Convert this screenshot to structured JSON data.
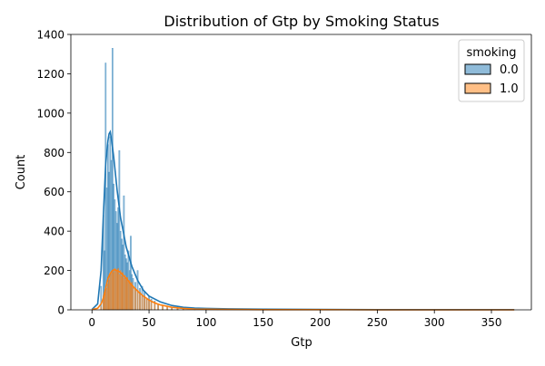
{
  "chart_data": {
    "type": "histogram",
    "title": "Distribution of Gtp by Smoking Status",
    "xlabel": "Gtp",
    "ylabel": "Count",
    "xlim": [
      -18.5,
      385
    ],
    "ylim": [
      0,
      1400
    ],
    "xticks": [
      0,
      50,
      100,
      150,
      200,
      250,
      300,
      350
    ],
    "yticks": [
      0,
      200,
      400,
      600,
      800,
      1000,
      1200,
      1400
    ],
    "grid": false,
    "legend": {
      "title": "smoking",
      "placement": "top-right"
    },
    "series": [
      {
        "name": "0.0",
        "color": "#1f77b4",
        "bins": [
          {
            "x": 8,
            "count": 120
          },
          {
            "x": 10,
            "count": 480
          },
          {
            "x": 11,
            "count": 300
          },
          {
            "x": 12,
            "count": 1255
          },
          {
            "x": 13,
            "count": 620
          },
          {
            "x": 14,
            "count": 840
          },
          {
            "x": 15,
            "count": 700
          },
          {
            "x": 16,
            "count": 880
          },
          {
            "x": 17,
            "count": 760
          },
          {
            "x": 18,
            "count": 1330
          },
          {
            "x": 19,
            "count": 640
          },
          {
            "x": 20,
            "count": 560
          },
          {
            "x": 21,
            "count": 500
          },
          {
            "x": 22,
            "count": 440
          },
          {
            "x": 23,
            "count": 520
          },
          {
            "x": 24,
            "count": 810
          },
          {
            "x": 25,
            "count": 400
          },
          {
            "x": 26,
            "count": 360
          },
          {
            "x": 27,
            "count": 330
          },
          {
            "x": 28,
            "count": 580
          },
          {
            "x": 29,
            "count": 280
          },
          {
            "x": 30,
            "count": 260
          },
          {
            "x": 31,
            "count": 240
          },
          {
            "x": 32,
            "count": 300
          },
          {
            "x": 33,
            "count": 200
          },
          {
            "x": 34,
            "count": 375
          },
          {
            "x": 35,
            "count": 180
          },
          {
            "x": 36,
            "count": 160
          },
          {
            "x": 38,
            "count": 140
          },
          {
            "x": 40,
            "count": 200
          },
          {
            "x": 42,
            "count": 110
          },
          {
            "x": 44,
            "count": 120
          },
          {
            "x": 46,
            "count": 90
          },
          {
            "x": 48,
            "count": 60
          },
          {
            "x": 50,
            "count": 70
          },
          {
            "x": 52,
            "count": 55
          },
          {
            "x": 55,
            "count": 45
          },
          {
            "x": 58,
            "count": 30
          },
          {
            "x": 62,
            "count": 25
          },
          {
            "x": 66,
            "count": 15
          },
          {
            "x": 70,
            "count": 12
          },
          {
            "x": 75,
            "count": 8
          },
          {
            "x": 80,
            "count": 5
          },
          {
            "x": 90,
            "count": 8
          },
          {
            "x": 100,
            "count": 3
          },
          {
            "x": 110,
            "count": 2
          }
        ],
        "kde": [
          [
            0,
            2
          ],
          [
            5,
            30
          ],
          [
            8,
            200
          ],
          [
            10,
            480
          ],
          [
            12,
            740
          ],
          [
            14,
            860
          ],
          [
            15,
            895
          ],
          [
            16,
            905
          ],
          [
            17,
            870
          ],
          [
            19,
            780
          ],
          [
            22,
            610
          ],
          [
            25,
            470
          ],
          [
            30,
            320
          ],
          [
            35,
            220
          ],
          [
            40,
            150
          ],
          [
            45,
            100
          ],
          [
            50,
            70
          ],
          [
            60,
            40
          ],
          [
            70,
            22
          ],
          [
            80,
            13
          ],
          [
            90,
            9
          ],
          [
            100,
            7
          ],
          [
            120,
            5
          ],
          [
            150,
            3
          ],
          [
            200,
            2
          ],
          [
            250,
            1
          ],
          [
            300,
            1
          ],
          [
            370,
            1
          ]
        ]
      },
      {
        "name": "1.0",
        "color": "#ff7f0e",
        "bins": [
          {
            "x": 8,
            "count": 15
          },
          {
            "x": 10,
            "count": 50
          },
          {
            "x": 11,
            "count": 80
          },
          {
            "x": 12,
            "count": 90
          },
          {
            "x": 13,
            "count": 110
          },
          {
            "x": 14,
            "count": 130
          },
          {
            "x": 15,
            "count": 150
          },
          {
            "x": 16,
            "count": 175
          },
          {
            "x": 17,
            "count": 185
          },
          {
            "x": 18,
            "count": 200
          },
          {
            "x": 19,
            "count": 190
          },
          {
            "x": 20,
            "count": 210
          },
          {
            "x": 21,
            "count": 200
          },
          {
            "x": 22,
            "count": 195
          },
          {
            "x": 23,
            "count": 210
          },
          {
            "x": 24,
            "count": 180
          },
          {
            "x": 25,
            "count": 200
          },
          {
            "x": 26,
            "count": 170
          },
          {
            "x": 27,
            "count": 190
          },
          {
            "x": 28,
            "count": 160
          },
          {
            "x": 29,
            "count": 175
          },
          {
            "x": 30,
            "count": 150
          },
          {
            "x": 31,
            "count": 165
          },
          {
            "x": 32,
            "count": 140
          },
          {
            "x": 33,
            "count": 150
          },
          {
            "x": 34,
            "count": 130
          },
          {
            "x": 35,
            "count": 140
          },
          {
            "x": 36,
            "count": 120
          },
          {
            "x": 38,
            "count": 110
          },
          {
            "x": 40,
            "count": 100
          },
          {
            "x": 42,
            "count": 90
          },
          {
            "x": 44,
            "count": 75
          },
          {
            "x": 46,
            "count": 70
          },
          {
            "x": 48,
            "count": 55
          },
          {
            "x": 50,
            "count": 50
          },
          {
            "x": 52,
            "count": 45
          },
          {
            "x": 55,
            "count": 40
          },
          {
            "x": 58,
            "count": 30
          },
          {
            "x": 62,
            "count": 20
          },
          {
            "x": 66,
            "count": 15
          },
          {
            "x": 70,
            "count": 10
          },
          {
            "x": 75,
            "count": 6
          },
          {
            "x": 80,
            "count": 4
          },
          {
            "x": 90,
            "count": 3
          }
        ],
        "kde": [
          [
            0,
            1
          ],
          [
            5,
            8
          ],
          [
            8,
            30
          ],
          [
            10,
            60
          ],
          [
            12,
            110
          ],
          [
            14,
            160
          ],
          [
            16,
            185
          ],
          [
            18,
            200
          ],
          [
            20,
            205
          ],
          [
            22,
            200
          ],
          [
            25,
            190
          ],
          [
            30,
            160
          ],
          [
            35,
            125
          ],
          [
            40,
            95
          ],
          [
            45,
            70
          ],
          [
            50,
            50
          ],
          [
            55,
            35
          ],
          [
            60,
            25
          ],
          [
            70,
            13
          ],
          [
            80,
            7
          ],
          [
            90,
            4
          ],
          [
            100,
            3
          ],
          [
            120,
            2
          ],
          [
            150,
            1
          ],
          [
            200,
            1
          ],
          [
            250,
            0
          ],
          [
            300,
            0
          ],
          [
            370,
            0
          ]
        ]
      }
    ]
  }
}
